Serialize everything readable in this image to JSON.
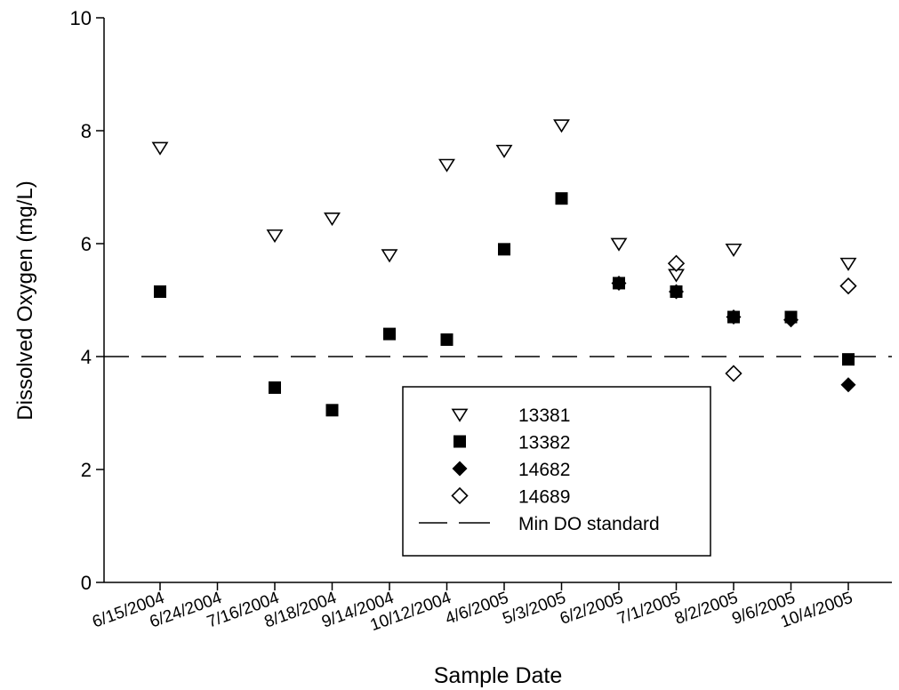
{
  "chart_data": {
    "type": "scatter",
    "title": "",
    "xlabel": "Sample Date",
    "ylabel": "Dissolved Oxygen (mg/L)",
    "ylim": [
      0,
      10
    ],
    "yticks": [
      "0",
      "2",
      "4",
      "6",
      "8",
      "10"
    ],
    "categories": [
      "6/15/2004",
      "6/24/2004",
      "7/16/2004",
      "8/18/2004",
      "9/14/2004",
      "10/12/2004",
      "4/6/2005",
      "5/3/2005",
      "6/2/2005",
      "7/1/2005",
      "8/2/2005",
      "9/6/2005",
      "10/4/2005"
    ],
    "series": [
      {
        "name": "13381",
        "marker": "triangle-down-open",
        "values": [
          7.7,
          null,
          6.15,
          6.45,
          5.8,
          7.4,
          7.65,
          8.1,
          6.0,
          5.45,
          5.9,
          null,
          5.65
        ]
      },
      {
        "name": "13382",
        "marker": "square-filled",
        "values": [
          5.15,
          null,
          3.45,
          3.05,
          4.4,
          4.3,
          5.9,
          6.8,
          5.3,
          5.15,
          4.7,
          4.7,
          3.95
        ]
      },
      {
        "name": "14682",
        "marker": "diamond-filled",
        "values": [
          null,
          null,
          null,
          null,
          null,
          null,
          null,
          null,
          5.3,
          5.15,
          4.7,
          4.65,
          3.5
        ]
      },
      {
        "name": "14689",
        "marker": "diamond-open",
        "values": [
          null,
          null,
          null,
          null,
          null,
          null,
          null,
          null,
          null,
          5.65,
          3.7,
          null,
          5.25
        ]
      }
    ],
    "reference_line": {
      "name": "Min DO standard",
      "value": 4,
      "style": "dashed"
    },
    "legend_position": "center-bottom",
    "grid": false
  }
}
